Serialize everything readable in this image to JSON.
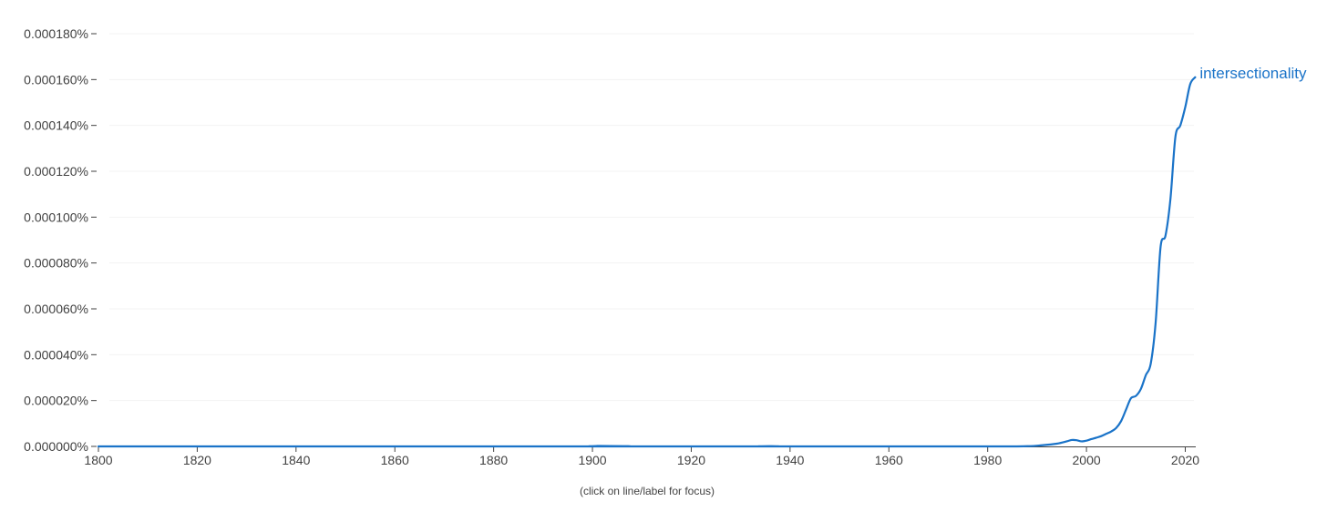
{
  "colors": {
    "series": "#1a73c8",
    "axis": "#424242",
    "grid": "#f3f3f3"
  },
  "hint": "(click on line/label for focus)",
  "chart_data": {
    "type": "line",
    "title": "",
    "xlabel": "",
    "ylabel": "",
    "xlim": [
      1800,
      2022
    ],
    "ylim": [
      0,
      0.00018
    ],
    "x_ticks": [
      {
        "value": 1800,
        "label": "1800"
      },
      {
        "value": 1820,
        "label": "1820"
      },
      {
        "value": 1840,
        "label": "1840"
      },
      {
        "value": 1860,
        "label": "1860"
      },
      {
        "value": 1880,
        "label": "1880"
      },
      {
        "value": 1900,
        "label": "1900"
      },
      {
        "value": 1920,
        "label": "1920"
      },
      {
        "value": 1940,
        "label": "1940"
      },
      {
        "value": 1960,
        "label": "1960"
      },
      {
        "value": 1980,
        "label": "1980"
      },
      {
        "value": 2000,
        "label": "2000"
      },
      {
        "value": 2020,
        "label": "2020"
      }
    ],
    "y_ticks": [
      {
        "value": 0,
        "label": "0.000000%"
      },
      {
        "value": 2e-05,
        "label": "0.000020%"
      },
      {
        "value": 4e-05,
        "label": "0.000040%"
      },
      {
        "value": 6e-05,
        "label": "0.000060%"
      },
      {
        "value": 8e-05,
        "label": "0.000080%"
      },
      {
        "value": 0.0001,
        "label": "0.000100%"
      },
      {
        "value": 0.00012,
        "label": "0.000120%"
      },
      {
        "value": 0.00014,
        "label": "0.000140%"
      },
      {
        "value": 0.00016,
        "label": "0.000160%"
      },
      {
        "value": 0.00018,
        "label": "0.000180%"
      }
    ],
    "grid": true,
    "legend": "inline-right-end",
    "series": [
      {
        "name": "intersectionality",
        "points": [
          [
            1800,
            0
          ],
          [
            1900,
            0
          ],
          [
            1901,
            2e-07
          ],
          [
            1902,
            0
          ],
          [
            1935,
            0
          ],
          [
            1936,
            1e-07
          ],
          [
            1937,
            0
          ],
          [
            1980,
            0
          ],
          [
            1988,
            1e-07
          ],
          [
            1991,
            5e-07
          ],
          [
            1994,
            1.2e-06
          ],
          [
            1996,
            2.2e-06
          ],
          [
            1997,
            2.8e-06
          ],
          [
            1998,
            2.7e-06
          ],
          [
            1999,
            2.2e-06
          ],
          [
            2000,
            2.5e-06
          ],
          [
            2001,
            3.2e-06
          ],
          [
            2002,
            3.8e-06
          ],
          [
            2003,
            4.5e-06
          ],
          [
            2004,
            5.5e-06
          ],
          [
            2005,
            6.5e-06
          ],
          [
            2006,
            8e-06
          ],
          [
            2007,
            1.1e-05
          ],
          [
            2008,
            1.6e-05
          ],
          [
            2009,
            2.1e-05
          ],
          [
            2010,
            2.2e-05
          ],
          [
            2011,
            2.5e-05
          ],
          [
            2012,
            3.1e-05
          ],
          [
            2013,
            3.6e-05
          ],
          [
            2014,
            5.4e-05
          ],
          [
            2015,
            8.7e-05
          ],
          [
            2016,
            9.2e-05
          ],
          [
            2017,
            0.000108
          ],
          [
            2018,
            0.000135
          ],
          [
            2019,
            0.00014
          ],
          [
            2020,
            0.000148
          ],
          [
            2021,
            0.000158
          ],
          [
            2022,
            0.000161
          ]
        ]
      }
    ]
  }
}
